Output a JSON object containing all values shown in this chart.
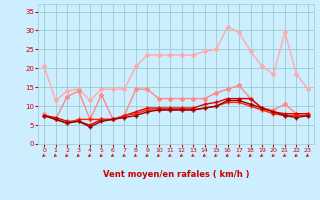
{
  "title": "",
  "xlabel": "Vent moyen/en rafales ( km/h )",
  "bg_color": "#cceeff",
  "grid_color": "#99cccc",
  "xlim": [
    -0.5,
    23.5
  ],
  "ylim": [
    0,
    37
  ],
  "yticks": [
    0,
    5,
    10,
    15,
    20,
    25,
    30,
    35
  ],
  "xticks": [
    0,
    1,
    2,
    3,
    4,
    5,
    6,
    7,
    8,
    9,
    10,
    11,
    12,
    13,
    14,
    15,
    16,
    17,
    18,
    19,
    20,
    21,
    22,
    23
  ],
  "series": [
    {
      "x": [
        0,
        1,
        2,
        3,
        4,
        5,
        6,
        7,
        8,
        9,
        10,
        11,
        12,
        13,
        14,
        15,
        16,
        17,
        18,
        19,
        20,
        21,
        22,
        23
      ],
      "y": [
        20.5,
        11.5,
        14.0,
        14.5,
        11.5,
        14.5,
        14.5,
        14.5,
        20.5,
        23.5,
        23.5,
        23.5,
        23.5,
        23.5,
        24.5,
        25.0,
        31.0,
        29.5,
        24.5,
        20.5,
        18.5,
        29.5,
        18.5,
        14.5
      ],
      "color": "#ffaaaa",
      "lw": 1.0,
      "marker": "D",
      "ms": 2.0
    },
    {
      "x": [
        0,
        1,
        2,
        3,
        4,
        5,
        6,
        7,
        8,
        9,
        10,
        11,
        12,
        13,
        14,
        15,
        16,
        17,
        18,
        19,
        20,
        21,
        22,
        23
      ],
      "y": [
        8.0,
        6.5,
        12.5,
        14.0,
        6.5,
        13.0,
        6.5,
        7.5,
        14.5,
        14.5,
        12.0,
        12.0,
        12.0,
        12.0,
        12.0,
        13.5,
        14.5,
        15.5,
        12.0,
        9.5,
        9.0,
        10.5,
        8.0,
        8.0
      ],
      "color": "#ff8888",
      "lw": 1.0,
      "marker": "D",
      "ms": 2.0
    },
    {
      "x": [
        0,
        1,
        2,
        3,
        4,
        5,
        6,
        7,
        8,
        9,
        10,
        11,
        12,
        13,
        14,
        15,
        16,
        17,
        18,
        19,
        20,
        21,
        22,
        23
      ],
      "y": [
        7.5,
        7.0,
        6.0,
        6.0,
        5.0,
        6.5,
        6.5,
        7.5,
        8.5,
        9.5,
        9.5,
        9.5,
        9.5,
        9.5,
        10.5,
        11.0,
        12.0,
        12.0,
        12.0,
        9.5,
        8.5,
        8.0,
        8.0,
        8.0
      ],
      "color": "#dd0000",
      "lw": 1.0,
      "marker": "+",
      "ms": 3.0
    },
    {
      "x": [
        0,
        1,
        2,
        3,
        4,
        5,
        6,
        7,
        8,
        9,
        10,
        11,
        12,
        13,
        14,
        15,
        16,
        17,
        18,
        19,
        20,
        21,
        22,
        23
      ],
      "y": [
        7.5,
        6.5,
        5.5,
        6.5,
        6.5,
        6.5,
        6.5,
        7.5,
        8.0,
        9.0,
        9.0,
        9.0,
        9.0,
        9.0,
        9.5,
        10.0,
        11.0,
        11.0,
        10.0,
        9.0,
        8.0,
        7.5,
        7.5,
        7.5
      ],
      "color": "#ff2200",
      "lw": 1.0,
      "marker": "+",
      "ms": 3.0
    },
    {
      "x": [
        0,
        1,
        2,
        3,
        4,
        5,
        6,
        7,
        8,
        9,
        10,
        11,
        12,
        13,
        14,
        15,
        16,
        17,
        18,
        19,
        20,
        21,
        22,
        23
      ],
      "y": [
        7.5,
        6.5,
        5.5,
        6.0,
        4.5,
        6.0,
        6.5,
        7.0,
        7.5,
        8.5,
        9.0,
        9.0,
        9.0,
        9.0,
        9.5,
        10.0,
        11.5,
        11.5,
        10.5,
        9.5,
        8.5,
        7.5,
        7.0,
        7.5
      ],
      "color": "#990000",
      "lw": 1.0,
      "marker": "+",
      "ms": 3.0
    }
  ],
  "arrow_color": "#cc0000",
  "tick_color": "#cc0000",
  "label_color": "#cc0000"
}
